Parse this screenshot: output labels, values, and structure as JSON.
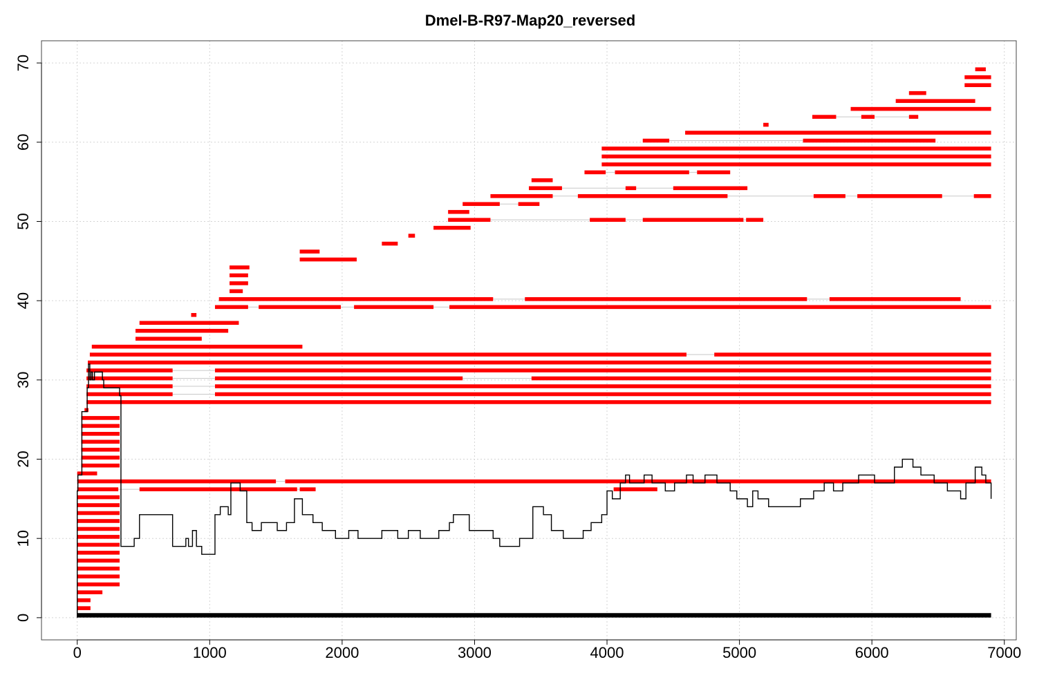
{
  "chart_data": {
    "type": "line",
    "title": "Dmel-B-R97-Map20_reversed",
    "xlabel": "",
    "ylabel": "",
    "xlim": [
      -270,
      7090
    ],
    "ylim": [
      -2.8,
      72.8
    ],
    "x_ticks": [
      0,
      1000,
      2000,
      3000,
      4000,
      5000,
      6000,
      7000
    ],
    "y_ticks": [
      0,
      10,
      20,
      30,
      40,
      50,
      60,
      70
    ],
    "grid": true,
    "colors": {
      "segments": "#ff0000",
      "connectors": "#c8c8c8",
      "coverage": "#000000",
      "reference": "#000000"
    },
    "reference_bar": {
      "y": 0.3,
      "x_start": 0,
      "x_end": 6900
    },
    "alignments": [
      {
        "y": 1.2,
        "segments": [
          [
            0,
            100
          ]
        ]
      },
      {
        "y": 2.2,
        "segments": [
          [
            0,
            100
          ]
        ]
      },
      {
        "y": 3.2,
        "segments": [
          [
            0,
            190
          ]
        ]
      },
      {
        "y": 4.2,
        "segments": [
          [
            0,
            320
          ]
        ]
      },
      {
        "y": 5.2,
        "segments": [
          [
            0,
            320
          ]
        ]
      },
      {
        "y": 6.2,
        "segments": [
          [
            0,
            320
          ]
        ]
      },
      {
        "y": 7.2,
        "segments": [
          [
            0,
            320
          ]
        ]
      },
      {
        "y": 8.2,
        "segments": [
          [
            0,
            320
          ]
        ]
      },
      {
        "y": 9.2,
        "segments": [
          [
            0,
            320
          ]
        ]
      },
      {
        "y": 10.2,
        "segments": [
          [
            0,
            320
          ]
        ]
      },
      {
        "y": 11.2,
        "segments": [
          [
            0,
            320
          ]
        ]
      },
      {
        "y": 12.2,
        "segments": [
          [
            0,
            320
          ]
        ]
      },
      {
        "y": 13.2,
        "segments": [
          [
            0,
            320
          ]
        ]
      },
      {
        "y": 14.2,
        "segments": [
          [
            0,
            320
          ]
        ]
      },
      {
        "y": 15.2,
        "segments": [
          [
            0,
            320
          ]
        ]
      },
      {
        "y": 16.2,
        "segments": [
          [
            0,
            310
          ],
          [
            470,
            1660
          ],
          [
            1680,
            1800
          ]
        ]
      },
      {
        "y": 16.2,
        "segments": [
          [
            4050,
            4380
          ]
        ]
      },
      {
        "y": 17.2,
        "segments": [
          [
            0,
            1500
          ],
          [
            1570,
            6900
          ]
        ]
      },
      {
        "y": 18.2,
        "segments": [
          [
            0,
            150
          ]
        ]
      },
      {
        "y": 19.2,
        "segments": [
          [
            30,
            320
          ]
        ]
      },
      {
        "y": 20.2,
        "segments": [
          [
            30,
            320
          ]
        ]
      },
      {
        "y": 21.2,
        "segments": [
          [
            30,
            320
          ]
        ]
      },
      {
        "y": 22.2,
        "segments": [
          [
            30,
            320
          ]
        ]
      },
      {
        "y": 23.2,
        "segments": [
          [
            30,
            320
          ]
        ]
      },
      {
        "y": 24.2,
        "segments": [
          [
            30,
            320
          ]
        ]
      },
      {
        "y": 25.2,
        "segments": [
          [
            30,
            320
          ]
        ]
      },
      {
        "y": 26.2,
        "segments": [
          [
            55,
            85
          ]
        ]
      },
      {
        "y": 27.2,
        "segments": [
          [
            70,
            6900
          ]
        ]
      },
      {
        "y": 28.2,
        "segments": [
          [
            70,
            720
          ],
          [
            1040,
            6900
          ]
        ]
      },
      {
        "y": 29.2,
        "segments": [
          [
            70,
            720
          ],
          [
            1040,
            6900
          ]
        ]
      },
      {
        "y": 30.2,
        "segments": [
          [
            70,
            720
          ],
          [
            1040,
            2910
          ],
          [
            3430,
            6900
          ]
        ]
      },
      {
        "y": 31.2,
        "segments": [
          [
            70,
            720
          ],
          [
            1040,
            6900
          ]
        ]
      },
      {
        "y": 32.2,
        "segments": [
          [
            80,
            6900
          ]
        ]
      },
      {
        "y": 33.2,
        "segments": [
          [
            95,
            4600
          ],
          [
            4810,
            6900
          ]
        ]
      },
      {
        "y": 34.2,
        "segments": [
          [
            110,
            1700
          ]
        ]
      },
      {
        "y": 35.2,
        "segments": [
          [
            440,
            940
          ]
        ]
      },
      {
        "y": 36.2,
        "segments": [
          [
            440,
            1140
          ]
        ]
      },
      {
        "y": 37.2,
        "segments": [
          [
            470,
            1220
          ]
        ]
      },
      {
        "y": 38.2,
        "segments": [
          [
            860,
            900
          ]
        ]
      },
      {
        "y": 39.2,
        "segments": [
          [
            1040,
            1290
          ],
          [
            1370,
            1990
          ],
          [
            2090,
            2690
          ],
          [
            2810,
            6900
          ]
        ]
      },
      {
        "y": 40.2,
        "segments": [
          [
            1070,
            3140
          ],
          [
            3380,
            5510
          ],
          [
            5680,
            6670
          ]
        ]
      },
      {
        "y": 41.2,
        "segments": [
          [
            1150,
            1250
          ]
        ]
      },
      {
        "y": 42.2,
        "segments": [
          [
            1150,
            1290
          ]
        ]
      },
      {
        "y": 43.2,
        "segments": [
          [
            1150,
            1290
          ]
        ]
      },
      {
        "y": 44.2,
        "segments": [
          [
            1150,
            1300
          ]
        ]
      },
      {
        "y": 45.2,
        "segments": [
          [
            1680,
            2110
          ]
        ]
      },
      {
        "y": 46.2,
        "segments": [
          [
            1680,
            1830
          ]
        ]
      },
      {
        "y": 47.2,
        "segments": [
          [
            2300,
            2420
          ]
        ]
      },
      {
        "y": 48.2,
        "segments": [
          [
            2500,
            2550
          ]
        ]
      },
      {
        "y": 49.2,
        "segments": [
          [
            2690,
            2970
          ]
        ]
      },
      {
        "y": 50.2,
        "segments": [
          [
            2800,
            3120
          ],
          [
            3870,
            4140
          ],
          [
            4270,
            5030
          ],
          [
            5050,
            5180
          ]
        ]
      },
      {
        "y": 51.2,
        "segments": [
          [
            2800,
            2960
          ]
        ]
      },
      {
        "y": 52.2,
        "segments": [
          [
            2910,
            3190
          ],
          [
            3330,
            3490
          ]
        ]
      },
      {
        "y": 53.2,
        "segments": [
          [
            3120,
            3590
          ],
          [
            3780,
            4910
          ],
          [
            5560,
            5800
          ],
          [
            5890,
            6530
          ],
          [
            6770,
            6900
          ]
        ]
      },
      {
        "y": 54.2,
        "segments": [
          [
            3410,
            3660
          ],
          [
            4140,
            4220
          ],
          [
            4500,
            5060
          ]
        ]
      },
      {
        "y": 55.2,
        "segments": [
          [
            3430,
            3590
          ]
        ]
      },
      {
        "y": 56.2,
        "segments": [
          [
            3830,
            3990
          ],
          [
            4060,
            4620
          ],
          [
            4680,
            4930
          ]
        ]
      },
      {
        "y": 57.2,
        "segments": [
          [
            3960,
            6900
          ]
        ]
      },
      {
        "y": 58.2,
        "segments": [
          [
            3960,
            6900
          ]
        ]
      },
      {
        "y": 59.2,
        "segments": [
          [
            3960,
            6900
          ]
        ]
      },
      {
        "y": 60.2,
        "segments": [
          [
            4270,
            4470
          ],
          [
            5480,
            6480
          ]
        ]
      },
      {
        "y": 61.2,
        "segments": [
          [
            4590,
            6900
          ]
        ]
      },
      {
        "y": 62.2,
        "segments": [
          [
            5180,
            5220
          ]
        ]
      },
      {
        "y": 63.2,
        "segments": [
          [
            5550,
            5730
          ],
          [
            5920,
            6020
          ],
          [
            6280,
            6350
          ]
        ]
      },
      {
        "y": 64.2,
        "segments": [
          [
            5840,
            6900
          ]
        ]
      },
      {
        "y": 65.2,
        "segments": [
          [
            6180,
            6780
          ]
        ]
      },
      {
        "y": 66.2,
        "segments": [
          [
            6280,
            6410
          ]
        ]
      },
      {
        "y": 67.2,
        "segments": [
          [
            6700,
            6900
          ]
        ]
      },
      {
        "y": 68.2,
        "segments": [
          [
            6700,
            6900
          ]
        ]
      },
      {
        "y": 69.2,
        "segments": [
          [
            6780,
            6860
          ]
        ]
      }
    ],
    "coverage": [
      [
        0,
        0
      ],
      [
        0,
        16
      ],
      [
        5,
        18
      ],
      [
        35,
        26
      ],
      [
        75,
        29
      ],
      [
        85,
        32
      ],
      [
        95,
        30
      ],
      [
        105,
        31
      ],
      [
        115,
        30
      ],
      [
        130,
        31
      ],
      [
        190,
        30
      ],
      [
        200,
        29
      ],
      [
        320,
        28
      ],
      [
        330,
        9
      ],
      [
        430,
        10
      ],
      [
        470,
        13
      ],
      [
        720,
        9
      ],
      [
        820,
        10
      ],
      [
        840,
        9
      ],
      [
        870,
        11
      ],
      [
        900,
        9
      ],
      [
        940,
        8
      ],
      [
        1040,
        13
      ],
      [
        1080,
        14
      ],
      [
        1140,
        13
      ],
      [
        1160,
        17
      ],
      [
        1230,
        16
      ],
      [
        1280,
        12
      ],
      [
        1320,
        11
      ],
      [
        1390,
        12
      ],
      [
        1510,
        11
      ],
      [
        1580,
        12
      ],
      [
        1640,
        15
      ],
      [
        1700,
        13
      ],
      [
        1780,
        12
      ],
      [
        1850,
        11
      ],
      [
        1950,
        10
      ],
      [
        2050,
        11
      ],
      [
        2120,
        10
      ],
      [
        2300,
        11
      ],
      [
        2420,
        10
      ],
      [
        2500,
        11
      ],
      [
        2590,
        10
      ],
      [
        2730,
        11
      ],
      [
        2810,
        12
      ],
      [
        2840,
        13
      ],
      [
        2960,
        11
      ],
      [
        3140,
        10
      ],
      [
        3190,
        9
      ],
      [
        3340,
        10
      ],
      [
        3440,
        14
      ],
      [
        3520,
        13
      ],
      [
        3580,
        11
      ],
      [
        3670,
        10
      ],
      [
        3820,
        11
      ],
      [
        3880,
        12
      ],
      [
        3960,
        13
      ],
      [
        4000,
        16
      ],
      [
        4040,
        15
      ],
      [
        4100,
        17
      ],
      [
        4140,
        18
      ],
      [
        4170,
        17
      ],
      [
        4280,
        18
      ],
      [
        4340,
        17
      ],
      [
        4440,
        16
      ],
      [
        4510,
        17
      ],
      [
        4600,
        18
      ],
      [
        4650,
        17
      ],
      [
        4740,
        18
      ],
      [
        4830,
        17
      ],
      [
        4930,
        16
      ],
      [
        4980,
        15
      ],
      [
        5060,
        14
      ],
      [
        5100,
        16
      ],
      [
        5140,
        15
      ],
      [
        5220,
        14
      ],
      [
        5460,
        15
      ],
      [
        5560,
        16
      ],
      [
        5640,
        17
      ],
      [
        5710,
        16
      ],
      [
        5780,
        17
      ],
      [
        5900,
        18
      ],
      [
        6020,
        17
      ],
      [
        6170,
        19
      ],
      [
        6230,
        20
      ],
      [
        6310,
        19
      ],
      [
        6370,
        18
      ],
      [
        6470,
        17
      ],
      [
        6570,
        16
      ],
      [
        6670,
        15
      ],
      [
        6710,
        17
      ],
      [
        6780,
        19
      ],
      [
        6830,
        18
      ],
      [
        6860,
        17
      ],
      [
        6900,
        15
      ]
    ]
  }
}
